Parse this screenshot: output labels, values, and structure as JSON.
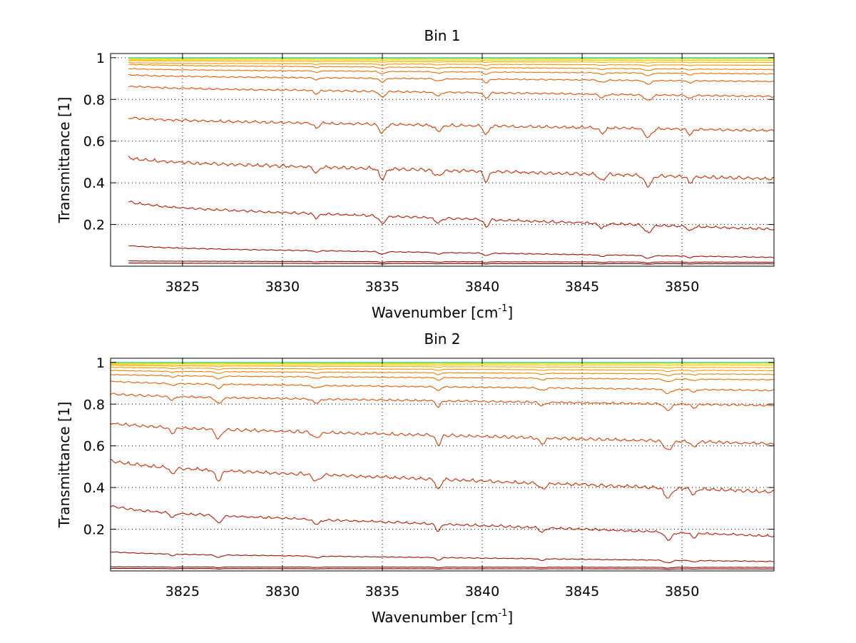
{
  "chart_data": [
    {
      "type": "line",
      "title": "Bin 1",
      "xlabel_main": "Wavenumber [cm",
      "xlabel_sup": "-1",
      "xlabel_end": "]",
      "ylabel": "Transmittance [1]",
      "xlim": [
        3821.4,
        3854.6
      ],
      "ylim": [
        0.0,
        1.02
      ],
      "xticks": [
        3825,
        3830,
        3835,
        3840,
        3845,
        3850
      ],
      "yticks": [
        0.2,
        0.4,
        0.6,
        0.8,
        1
      ],
      "grid": true,
      "x_start": 3822.3,
      "lines": [
        3831.7,
        3835.0,
        3837.8,
        3840.2,
        3846.0,
        3848.3,
        3850.4
      ],
      "series": [
        {
          "color": "#7a0000",
          "start": 0.015,
          "end": 0.012
        },
        {
          "color": "#8b0a00",
          "start": 0.025,
          "end": 0.02
        },
        {
          "color": "#a01000",
          "start": 0.09,
          "end": 0.045
        },
        {
          "color": "#b81a00",
          "start": 0.29,
          "end": 0.185
        },
        {
          "color": "#cc2b00",
          "start": 0.51,
          "end": 0.43
        },
        {
          "color": "#d63a00",
          "start": 0.71,
          "end": 0.66
        },
        {
          "color": "#e04c00",
          "start": 0.86,
          "end": 0.82
        },
        {
          "color": "#e85d00",
          "start": 0.915,
          "end": 0.89
        },
        {
          "color": "#ee7000",
          "start": 0.945,
          "end": 0.925
        },
        {
          "color": "#f28300",
          "start": 0.965,
          "end": 0.945
        },
        {
          "color": "#f59800",
          "start": 0.975,
          "end": 0.965
        },
        {
          "color": "#f8ac00",
          "start": 0.985,
          "end": 0.978
        },
        {
          "color": "#f6c800",
          "start": 0.99,
          "end": 0.988
        },
        {
          "color": "#e8e000",
          "start": 0.995,
          "end": 0.994
        },
        {
          "color": "#b0e030",
          "start": 0.998,
          "end": 0.998
        },
        {
          "color": "#30d0d0",
          "start": 1.0,
          "end": 1.0
        }
      ]
    },
    {
      "type": "line",
      "title": "Bin 2",
      "xlabel_main": "Wavenumber [cm",
      "xlabel_sup": "-1",
      "xlabel_end": "]",
      "ylabel": "Transmittance [1]",
      "xlim": [
        3821.4,
        3854.6
      ],
      "ylim": [
        0.0,
        1.02
      ],
      "xticks": [
        3825,
        3830,
        3835,
        3840,
        3845,
        3850
      ],
      "yticks": [
        0.2,
        0.4,
        0.6,
        0.8,
        1
      ],
      "grid": true,
      "x_start": 3821.4,
      "lines": [
        3824.5,
        3826.8,
        3831.7,
        3837.8,
        3843.0,
        3849.3,
        3850.6
      ],
      "series": [
        {
          "color": "#7a0000",
          "start": 0.012,
          "end": 0.01
        },
        {
          "color": "#8b0a00",
          "start": 0.02,
          "end": 0.018
        },
        {
          "color": "#a01000",
          "start": 0.085,
          "end": 0.048
        },
        {
          "color": "#b81a00",
          "start": 0.29,
          "end": 0.175
        },
        {
          "color": "#cc2b00",
          "start": 0.51,
          "end": 0.39
        },
        {
          "color": "#d63a00",
          "start": 0.7,
          "end": 0.62
        },
        {
          "color": "#e04c00",
          "start": 0.845,
          "end": 0.8
        },
        {
          "color": "#e85d00",
          "start": 0.905,
          "end": 0.87
        },
        {
          "color": "#ee7000",
          "start": 0.94,
          "end": 0.92
        },
        {
          "color": "#f28300",
          "start": 0.96,
          "end": 0.945
        },
        {
          "color": "#f59800",
          "start": 0.975,
          "end": 0.962
        },
        {
          "color": "#f8ac00",
          "start": 0.985,
          "end": 0.976
        },
        {
          "color": "#f6c800",
          "start": 0.99,
          "end": 0.987
        },
        {
          "color": "#e8e000",
          "start": 0.995,
          "end": 0.993
        },
        {
          "color": "#b0e030",
          "start": 0.998,
          "end": 0.998
        },
        {
          "color": "#30d0d0",
          "start": 1.0,
          "end": 1.0
        }
      ]
    }
  ]
}
